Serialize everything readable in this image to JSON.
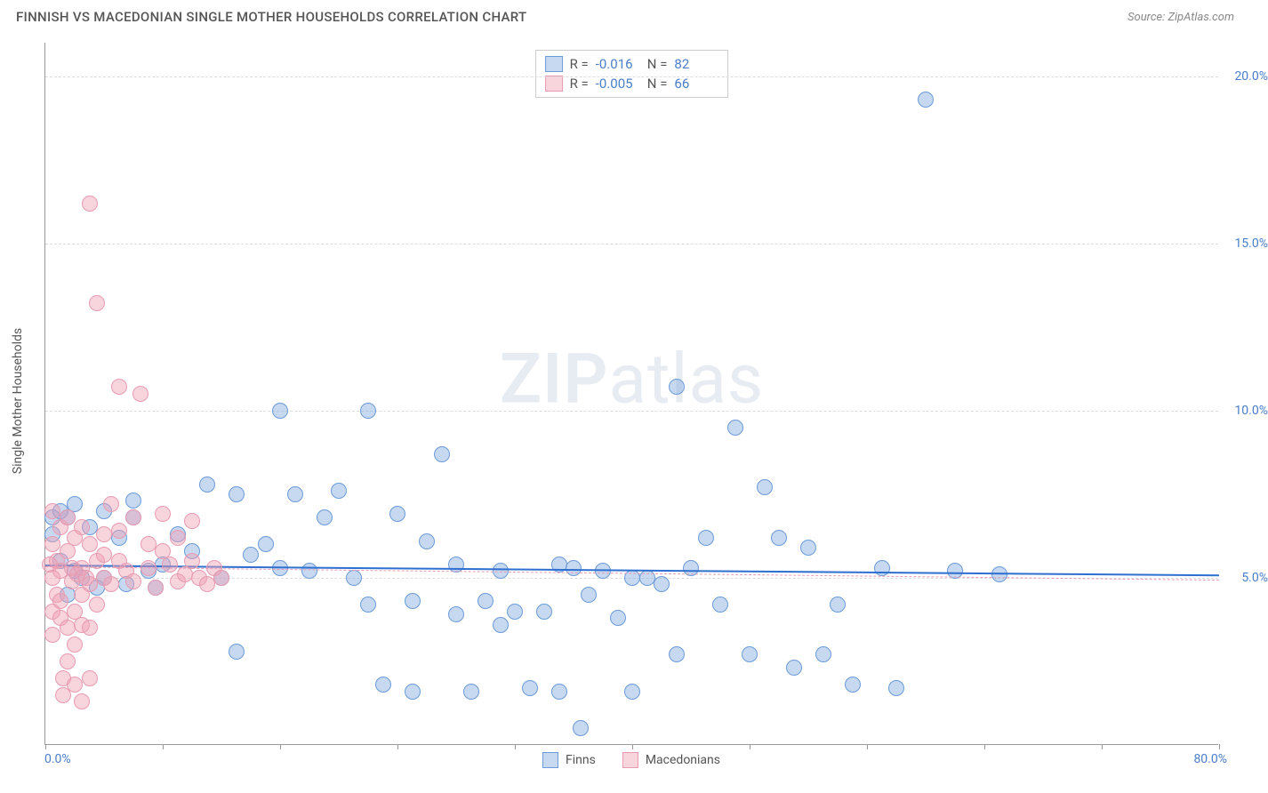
{
  "header": {
    "title": "FINNISH VS MACEDONIAN SINGLE MOTHER HOUSEHOLDS CORRELATION CHART",
    "source_prefix": "Source: ",
    "source_name": "ZipAtlas.com"
  },
  "chart": {
    "type": "scatter",
    "y_axis_label": "Single Mother Households",
    "background_color": "#ffffff",
    "grid_color": "#dddddd",
    "axis_color": "#999999",
    "tick_label_color": "#4a7ec9",
    "xlim": [
      0,
      80
    ],
    "ylim": [
      0,
      21
    ],
    "x_origin_label": "0.0%",
    "x_max_label": "80.0%",
    "x_tick_positions": [
      0,
      8,
      16,
      24,
      32,
      40,
      48,
      56,
      64,
      72,
      80
    ],
    "y_grid": [
      {
        "value": 5,
        "label": "5.0%"
      },
      {
        "value": 10,
        "label": "10.0%"
      },
      {
        "value": 15,
        "label": "15.0%"
      },
      {
        "value": 20,
        "label": "20.0%"
      }
    ],
    "watermark": {
      "bold": "ZIP",
      "rest": "atlas"
    },
    "series": [
      {
        "name": "Finns",
        "fill": "rgba(130,170,225,0.45)",
        "stroke": "#6b9bd8",
        "marker_radius": 9,
        "trend": {
          "y_start": 5.4,
          "y_end": 5.1,
          "color": "#2e6fd0",
          "width": 2,
          "dash": "solid"
        },
        "R_label": "R =",
        "R_value": "-0.016",
        "N_label": "N =",
        "N_value": "82",
        "points": [
          [
            0.5,
            6.8
          ],
          [
            0.5,
            6.3
          ],
          [
            1,
            7.0
          ],
          [
            1,
            5.5
          ],
          [
            1.5,
            4.5
          ],
          [
            1.5,
            6.8
          ],
          [
            2,
            7.2
          ],
          [
            2,
            5.2
          ],
          [
            2.5,
            5.0
          ],
          [
            3,
            6.5
          ],
          [
            3.5,
            4.7
          ],
          [
            4,
            7.0
          ],
          [
            4,
            5.0
          ],
          [
            5,
            6.2
          ],
          [
            5.5,
            4.8
          ],
          [
            6,
            7.3
          ],
          [
            6,
            6.8
          ],
          [
            7,
            5.2
          ],
          [
            7.5,
            4.7
          ],
          [
            8,
            5.4
          ],
          [
            9,
            6.3
          ],
          [
            10,
            5.8
          ],
          [
            11,
            7.8
          ],
          [
            12,
            5.0
          ],
          [
            13,
            7.5
          ],
          [
            13,
            2.8
          ],
          [
            14,
            5.7
          ],
          [
            15,
            6.0
          ],
          [
            16,
            10.0
          ],
          [
            16,
            5.3
          ],
          [
            17,
            7.5
          ],
          [
            18,
            5.2
          ],
          [
            19,
            6.8
          ],
          [
            20,
            7.6
          ],
          [
            21,
            5.0
          ],
          [
            22,
            10.0
          ],
          [
            22,
            4.2
          ],
          [
            23,
            1.8
          ],
          [
            24,
            6.9
          ],
          [
            25,
            4.3
          ],
          [
            25,
            1.6
          ],
          [
            26,
            6.1
          ],
          [
            27,
            8.7
          ],
          [
            28,
            5.4
          ],
          [
            28,
            3.9
          ],
          [
            29,
            1.6
          ],
          [
            30,
            4.3
          ],
          [
            31,
            5.2
          ],
          [
            31,
            3.6
          ],
          [
            32,
            4.0
          ],
          [
            33,
            1.7
          ],
          [
            34,
            4.0
          ],
          [
            35,
            5.4
          ],
          [
            35,
            1.6
          ],
          [
            36,
            5.3
          ],
          [
            36.5,
            0.5
          ],
          [
            37,
            4.5
          ],
          [
            38,
            5.2
          ],
          [
            39,
            3.8
          ],
          [
            40,
            5.0
          ],
          [
            40,
            1.6
          ],
          [
            41,
            5.0
          ],
          [
            42,
            4.8
          ],
          [
            43,
            2.7
          ],
          [
            43,
            10.7
          ],
          [
            44,
            5.3
          ],
          [
            45,
            6.2
          ],
          [
            46,
            4.2
          ],
          [
            47,
            9.5
          ],
          [
            48,
            2.7
          ],
          [
            49,
            7.7
          ],
          [
            50,
            6.2
          ],
          [
            51,
            2.3
          ],
          [
            52,
            5.9
          ],
          [
            53,
            2.7
          ],
          [
            54,
            4.2
          ],
          [
            55,
            1.8
          ],
          [
            57,
            5.3
          ],
          [
            58,
            1.7
          ],
          [
            60,
            19.3
          ],
          [
            62,
            5.2
          ],
          [
            65,
            5.1
          ]
        ]
      },
      {
        "name": "Macedonians",
        "fill": "rgba(240,160,180,0.45)",
        "stroke": "#e89bb0",
        "marker_radius": 9,
        "trend": {
          "y_start": 5.35,
          "y_end": 4.95,
          "color": "#e89bb0",
          "width": 1.5,
          "dash": "dashed"
        },
        "R_label": "R =",
        "R_value": "-0.005",
        "N_label": "N =",
        "N_value": "66",
        "points": [
          [
            0.3,
            5.4
          ],
          [
            0.5,
            5.0
          ],
          [
            0.5,
            6.0
          ],
          [
            0.5,
            4.0
          ],
          [
            0.5,
            3.3
          ],
          [
            0.5,
            7.0
          ],
          [
            0.8,
            5.5
          ],
          [
            0.8,
            4.5
          ],
          [
            1,
            6.5
          ],
          [
            1,
            5.2
          ],
          [
            1,
            4.3
          ],
          [
            1,
            3.8
          ],
          [
            1.2,
            2.0
          ],
          [
            1.2,
            1.5
          ],
          [
            1.5,
            5.8
          ],
          [
            1.5,
            6.8
          ],
          [
            1.5,
            3.5
          ],
          [
            1.5,
            2.5
          ],
          [
            1.8,
            5.3
          ],
          [
            1.8,
            4.9
          ],
          [
            2,
            6.2
          ],
          [
            2,
            4.0
          ],
          [
            2,
            3.0
          ],
          [
            2,
            1.8
          ],
          [
            2.2,
            5.1
          ],
          [
            2.5,
            6.5
          ],
          [
            2.5,
            5.3
          ],
          [
            2.5,
            4.5
          ],
          [
            2.5,
            3.6
          ],
          [
            2.5,
            1.3
          ],
          [
            2.8,
            5.0
          ],
          [
            3,
            6.0
          ],
          [
            3,
            4.8
          ],
          [
            3,
            3.5
          ],
          [
            3,
            2.0
          ],
          [
            3,
            16.2
          ],
          [
            3.5,
            5.5
          ],
          [
            3.5,
            4.2
          ],
          [
            3.5,
            13.2
          ],
          [
            4,
            5.7
          ],
          [
            4,
            5.0
          ],
          [
            4,
            6.3
          ],
          [
            4.5,
            4.8
          ],
          [
            4.5,
            7.2
          ],
          [
            5,
            5.5
          ],
          [
            5,
            6.4
          ],
          [
            5,
            10.7
          ],
          [
            5.5,
            5.2
          ],
          [
            6,
            4.9
          ],
          [
            6,
            6.8
          ],
          [
            6.5,
            10.5
          ],
          [
            7,
            5.3
          ],
          [
            7,
            6.0
          ],
          [
            7.5,
            4.7
          ],
          [
            8,
            5.8
          ],
          [
            8,
            6.9
          ],
          [
            8.5,
            5.4
          ],
          [
            9,
            4.9
          ],
          [
            9,
            6.2
          ],
          [
            9.5,
            5.1
          ],
          [
            10,
            5.5
          ],
          [
            10,
            6.7
          ],
          [
            10.5,
            5.0
          ],
          [
            11,
            4.8
          ],
          [
            11.5,
            5.3
          ],
          [
            12,
            5.0
          ]
        ]
      }
    ],
    "legend_box": {
      "border_color": "#cccccc",
      "bg": "#ffffff"
    },
    "legend_bottom_label_color": "#555555"
  }
}
